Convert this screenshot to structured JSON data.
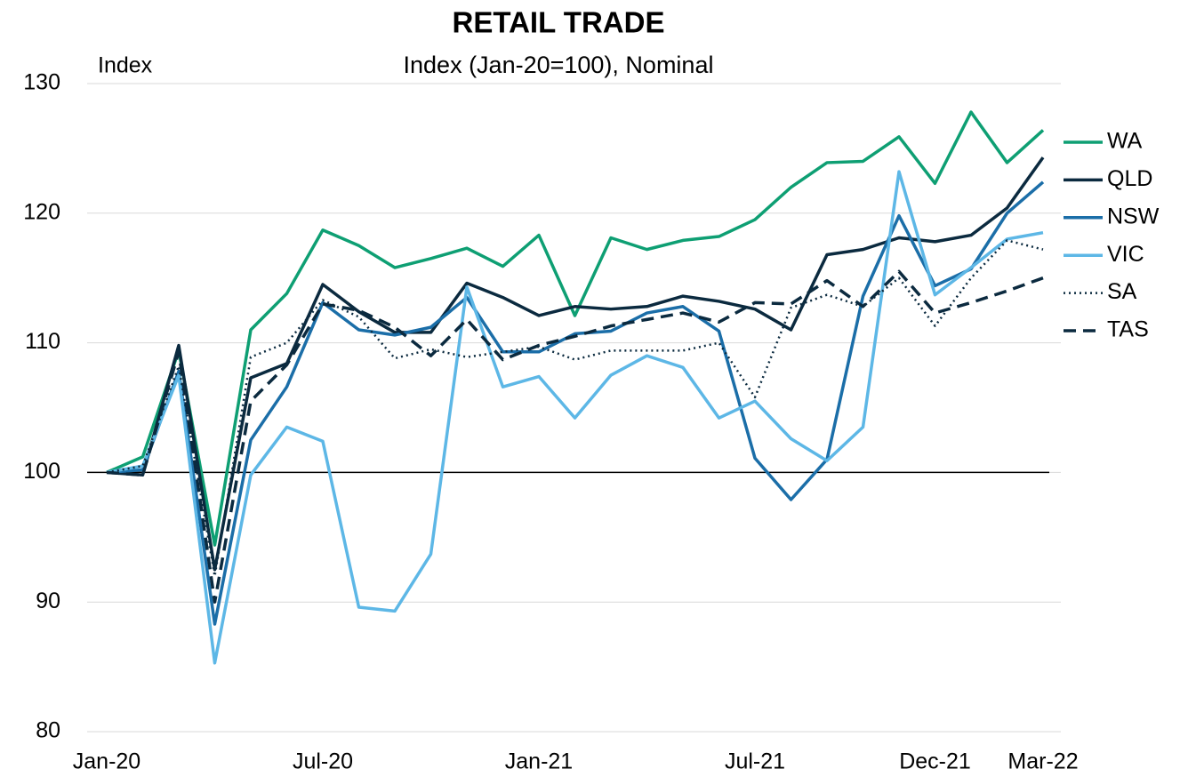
{
  "chart_data": {
    "type": "line",
    "title": "RETAIL TRADE",
    "subtitle": "Index (Jan-20=100), Nominal",
    "y_label": "Index",
    "categories": [
      "Jan-20",
      null,
      null,
      null,
      null,
      null,
      "Jul-20",
      null,
      null,
      null,
      null,
      null,
      "Jan-21",
      null,
      null,
      null,
      null,
      null,
      "Jul-21",
      null,
      null,
      null,
      null,
      "Dec-21",
      null,
      null,
      "Mar-22"
    ],
    "ylim": [
      80,
      130
    ],
    "yticks": [
      80,
      90,
      100,
      110,
      120,
      130
    ],
    "grid": true,
    "reference_line": 100,
    "legend": "right",
    "series": [
      {
        "name": "WA",
        "color": "#0e9f73",
        "dash": "solid",
        "values": [
          100,
          101.2,
          109.4,
          94.4,
          111.0,
          113.8,
          118.7,
          117.5,
          115.8,
          116.5,
          117.3,
          115.9,
          118.3,
          112.1,
          118.1,
          117.2,
          117.9,
          118.2,
          119.5,
          122.0,
          123.9,
          124.0,
          125.9,
          122.3,
          127.8,
          123.9,
          126.4
        ]
      },
      {
        "name": "QLD",
        "color": "#0b2a3f",
        "dash": "solid",
        "values": [
          100,
          99.8,
          109.8,
          92.5,
          107.3,
          108.4,
          114.5,
          112.4,
          110.8,
          110.8,
          114.6,
          113.5,
          112.1,
          112.8,
          112.6,
          112.8,
          113.6,
          113.2,
          112.6,
          111.0,
          116.8,
          117.2,
          118.1,
          117.8,
          118.3,
          120.4,
          124.3
        ]
      },
      {
        "name": "NSW",
        "color": "#1b6ea8",
        "dash": "solid",
        "values": [
          100,
          100.2,
          107.8,
          88.3,
          102.5,
          106.6,
          113.1,
          111.0,
          110.6,
          111.2,
          113.5,
          109.3,
          109.3,
          110.7,
          110.9,
          112.3,
          112.8,
          110.9,
          101.1,
          97.9,
          101.0,
          113.6,
          119.8,
          114.4,
          115.7,
          120.0,
          122.4
        ]
      },
      {
        "name": "VIC",
        "color": "#5db7e6",
        "dash": "solid",
        "values": [
          100,
          100.5,
          107.5,
          85.3,
          99.8,
          103.5,
          102.4,
          89.6,
          89.3,
          93.7,
          114.3,
          106.6,
          107.4,
          104.2,
          107.5,
          109.0,
          108.1,
          104.2,
          105.5,
          102.6,
          100.9,
          103.5,
          123.2,
          113.7,
          115.8,
          118.0,
          118.5
        ]
      },
      {
        "name": "SA",
        "color": "#0b2a3f",
        "dash": "dotted",
        "values": [
          100,
          100.5,
          108.2,
          92.0,
          108.9,
          110.0,
          113.3,
          112.0,
          108.8,
          109.5,
          108.9,
          109.3,
          109.7,
          108.7,
          109.4,
          109.4,
          109.4,
          110.0,
          105.8,
          112.7,
          113.7,
          112.8,
          115.0,
          111.3,
          115.0,
          117.9,
          117.2
        ]
      },
      {
        "name": "TAS",
        "color": "#0b2a3f",
        "dash": "dashed",
        "values": [
          100,
          99.8,
          109.3,
          90.0,
          105.5,
          108.3,
          113.0,
          112.5,
          111.2,
          109.0,
          111.8,
          108.7,
          109.8,
          110.5,
          111.3,
          111.8,
          112.3,
          111.6,
          113.1,
          113.0,
          114.8,
          112.8,
          115.5,
          112.3,
          113.1,
          114.0,
          115.0
        ]
      }
    ]
  }
}
